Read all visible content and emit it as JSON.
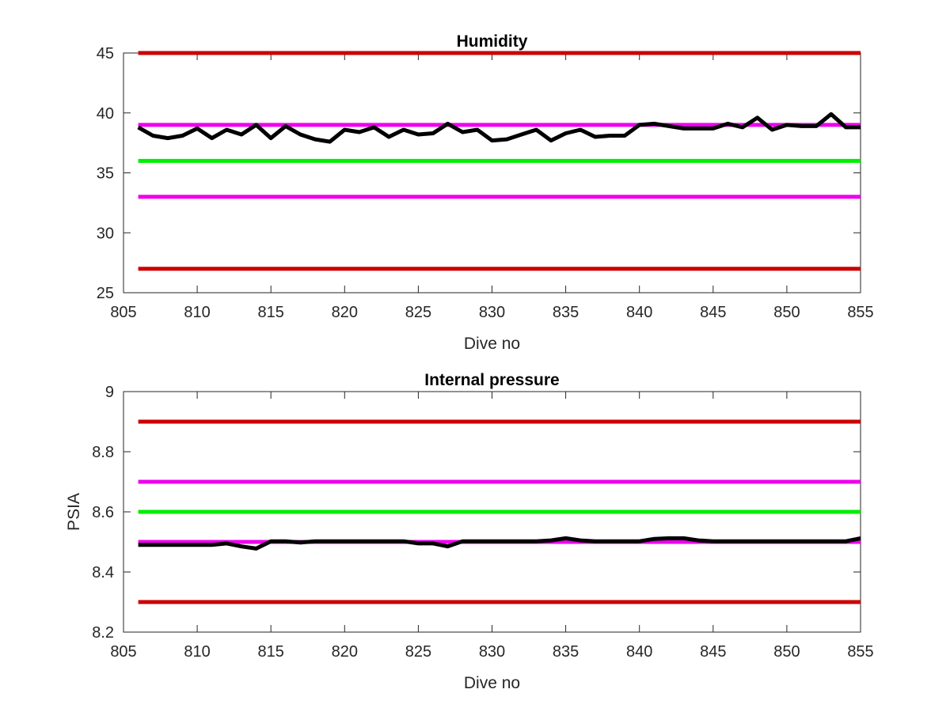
{
  "chart_data": [
    {
      "type": "line",
      "title": "Humidity",
      "xlabel": "Dive no",
      "ylabel": "",
      "xlim": [
        805,
        855
      ],
      "ylim": [
        25,
        45
      ],
      "xticks": [
        "805",
        "810",
        "815",
        "820",
        "825",
        "830",
        "835",
        "840",
        "845",
        "850",
        "855"
      ],
      "yticks": [
        "25",
        "30",
        "35",
        "40",
        "45"
      ],
      "grid": false,
      "reference_lines": [
        {
          "y": 45,
          "color": "#cc0000"
        },
        {
          "y": 39,
          "color": "#ee00ee"
        },
        {
          "y": 36,
          "color": "#00ee00"
        },
        {
          "y": 33,
          "color": "#ee00ee"
        },
        {
          "y": 27,
          "color": "#cc0000"
        }
      ],
      "series": [
        {
          "color": "#000000",
          "x": [
            806,
            807,
            808,
            809,
            810,
            811,
            812,
            813,
            814,
            815,
            816,
            817,
            818,
            819,
            820,
            821,
            822,
            823,
            824,
            825,
            826,
            827,
            828,
            829,
            830,
            831,
            832,
            833,
            834,
            835,
            836,
            837,
            838,
            839,
            840,
            841,
            842,
            843,
            844,
            845,
            846,
            847,
            848,
            849,
            850,
            851,
            852,
            853,
            854,
            855
          ],
          "y": [
            38.8,
            38.1,
            37.9,
            38.1,
            38.7,
            37.9,
            38.6,
            38.2,
            39.0,
            37.9,
            38.9,
            38.2,
            37.8,
            37.6,
            38.6,
            38.4,
            38.8,
            38.0,
            38.6,
            38.2,
            38.3,
            39.1,
            38.4,
            38.6,
            37.7,
            37.8,
            38.2,
            38.6,
            37.7,
            38.3,
            38.6,
            38.0,
            38.1,
            38.1,
            39.0,
            39.1,
            38.9,
            38.7,
            38.7,
            38.7,
            39.1,
            38.8,
            39.6,
            38.6,
            39.0,
            38.9,
            38.9,
            39.9,
            38.8,
            38.8
          ]
        }
      ]
    },
    {
      "type": "line",
      "title": "Internal pressure",
      "xlabel": "Dive no",
      "ylabel": "PSIA",
      "xlim": [
        805,
        855
      ],
      "ylim": [
        8.2,
        9
      ],
      "xticks": [
        "805",
        "810",
        "815",
        "820",
        "825",
        "830",
        "835",
        "840",
        "845",
        "850",
        "855"
      ],
      "yticks": [
        "8.2",
        "8.4",
        "8.6",
        "8.8",
        "9"
      ],
      "grid": false,
      "reference_lines": [
        {
          "y": 8.9,
          "color": "#cc0000"
        },
        {
          "y": 8.7,
          "color": "#ee00ee"
        },
        {
          "y": 8.6,
          "color": "#00ee00"
        },
        {
          "y": 8.5,
          "color": "#ee00ee"
        },
        {
          "y": 8.3,
          "color": "#cc0000"
        }
      ],
      "series": [
        {
          "color": "#000000",
          "x": [
            806,
            807,
            808,
            809,
            810,
            811,
            812,
            813,
            814,
            815,
            816,
            817,
            818,
            819,
            820,
            821,
            822,
            823,
            824,
            825,
            826,
            827,
            828,
            829,
            830,
            831,
            832,
            833,
            834,
            835,
            836,
            837,
            838,
            839,
            840,
            841,
            842,
            843,
            844,
            845,
            846,
            847,
            848,
            849,
            850,
            851,
            852,
            853,
            854,
            855
          ],
          "y": [
            8.49,
            8.49,
            8.49,
            8.49,
            8.49,
            8.49,
            8.495,
            8.485,
            8.478,
            8.502,
            8.502,
            8.498,
            8.502,
            8.502,
            8.502,
            8.502,
            8.502,
            8.502,
            8.502,
            8.495,
            8.495,
            8.485,
            8.502,
            8.502,
            8.502,
            8.502,
            8.502,
            8.502,
            8.505,
            8.512,
            8.505,
            8.502,
            8.502,
            8.502,
            8.502,
            8.51,
            8.512,
            8.512,
            8.505,
            8.502,
            8.502,
            8.502,
            8.502,
            8.502,
            8.502,
            8.502,
            8.502,
            8.502,
            8.502,
            8.512
          ]
        }
      ]
    }
  ]
}
